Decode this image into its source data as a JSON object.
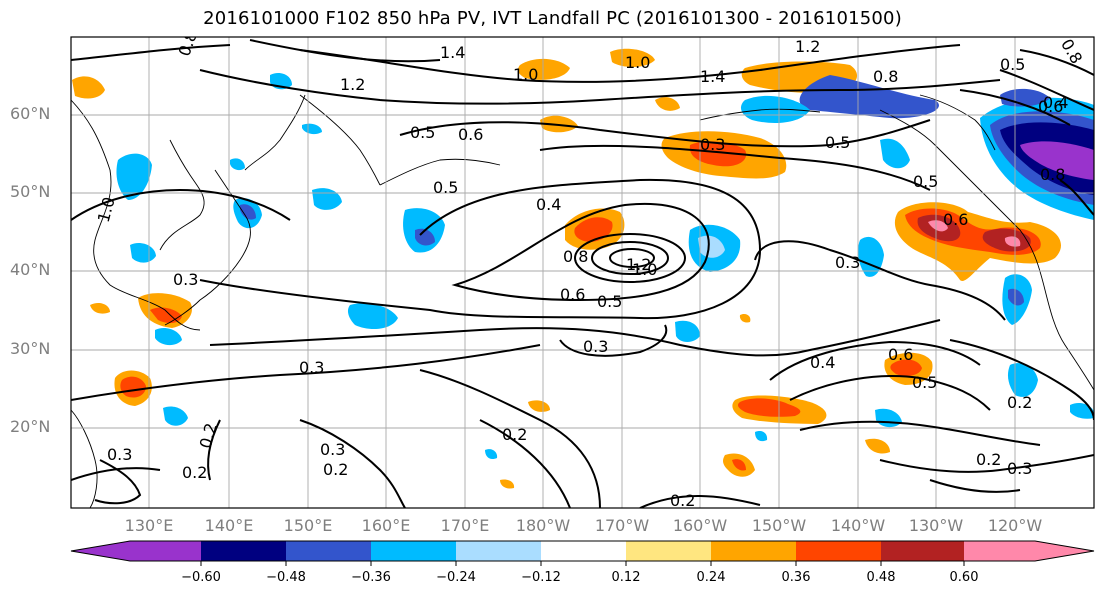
{
  "title": "2016101000 F102 850 hPa PV, IVT Landfall PC (2016101300 - 2016101500)",
  "lat_labels": [
    "60°N",
    "50°N",
    "40°N",
    "30°N",
    "20°N"
  ],
  "lon_labels": [
    "130°E",
    "140°E",
    "150°E",
    "160°E",
    "170°E",
    "180°W",
    "170°W",
    "160°W",
    "150°W",
    "140°W",
    "130°W",
    "120°W"
  ],
  "colorbar": {
    "colors": [
      "#9933cc",
      "#000080",
      "#3355cc",
      "#00bbff",
      "#aaddff",
      "#ffffff",
      "#ffe680",
      "#ffa500",
      "#ff4500",
      "#b22222",
      "#ff88aa"
    ],
    "tick_labels": [
      "−0.60",
      "−0.48",
      "−0.36",
      "−0.24",
      "−0.12",
      "0.12",
      "0.24",
      "0.36",
      "0.48",
      "0.60"
    ]
  },
  "contour_labels": [
    "0.8",
    "1.4",
    "1.2",
    "0.8",
    "1.2",
    "1.0",
    "1.0",
    "1.4",
    "0.8",
    "0.5",
    "0.5",
    "0.6",
    "0.5",
    "0.4",
    "0.5",
    "0.3",
    "0.6",
    "0.5",
    "0.4",
    "0.8",
    "1.2",
    "1.0",
    "0.3",
    "0.6",
    "0.5",
    "0.3",
    "0.3",
    "0.4",
    "0.6",
    "0.5",
    "0.2",
    "0.2",
    "0.3",
    "0.2",
    "0.3",
    "0.2",
    "0.3",
    "0.2",
    "0.3",
    "0.2",
    "1.0",
    "0.2",
    "0.6",
    "0.8"
  ]
}
